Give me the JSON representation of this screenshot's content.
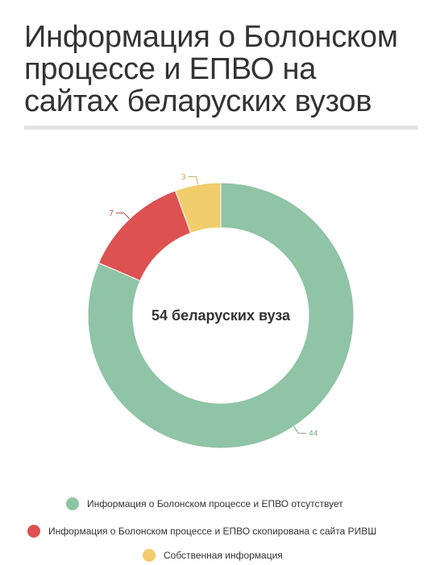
{
  "header": {
    "title_lines": [
      "Информация о Болонском",
      "процессе и ЕПВО на",
      "сайтах беларуских вузов"
    ]
  },
  "chart_data": {
    "type": "pie",
    "donut": true,
    "center_label": "54 беларуских вуза",
    "series": [
      {
        "name": "Информация о Болонском процессе и ЕПВО отсутствует",
        "value": 44,
        "color": "#8fc4a6"
      },
      {
        "name": "Информация о Болонском процессе и ЕПВО скопирована с сайта РИВШ",
        "value": 7,
        "color": "#dd5151"
      },
      {
        "name": "Собственная информация",
        "value": 3,
        "color": "#f1cd6c"
      }
    ],
    "legend_position": "bottom"
  }
}
